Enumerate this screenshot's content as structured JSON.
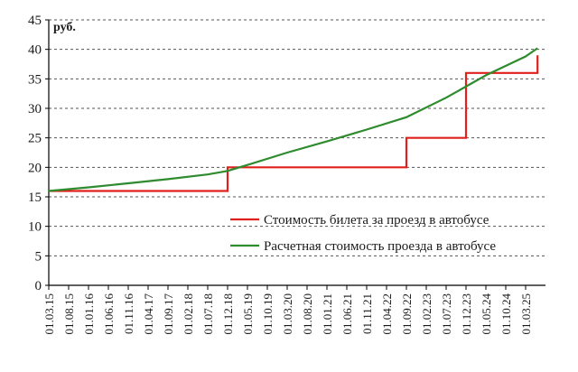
{
  "chart_data": {
    "type": "line",
    "ylabel": "руб.",
    "ylim": [
      0,
      45
    ],
    "y_ticks": [
      "0",
      "5",
      "10",
      "15",
      "20",
      "25",
      "30",
      "35",
      "40",
      "45"
    ],
    "categories": [
      "01.03.15",
      "01.08.15",
      "01.01.16",
      "01.06.16",
      "01.11.16",
      "01.04.17",
      "01.09.17",
      "01.02.18",
      "01.07.18",
      "01.12.18",
      "01.05.19",
      "01.10.19",
      "01.03.20",
      "01.08.20",
      "01.01.21",
      "01.06.21",
      "01.11.21",
      "01.04.22",
      "01.09.22",
      "01.02.23",
      "01.07.23",
      "01.12.23",
      "01.05.24",
      "01.10.24",
      "01.03.25"
    ],
    "grid": "horizontal-dashed",
    "legend_position": "center-right",
    "series": [
      {
        "name": "Стоимость билета за проезд в автобусе",
        "color": "#e0201c",
        "step": true,
        "points": [
          {
            "x": "01.03.15",
            "y": 16
          },
          {
            "x": "01.12.18",
            "y": 16
          },
          {
            "x": "01.12.18",
            "y": 20
          },
          {
            "x": "01.09.22",
            "y": 20
          },
          {
            "x": "01.09.22",
            "y": 25
          },
          {
            "x": "01.12.23",
            "y": 25
          },
          {
            "x": "01.12.23",
            "y": 36
          },
          {
            "x": "01.06.25",
            "y": 36
          },
          {
            "x": "01.06.25",
            "y": 39
          }
        ]
      },
      {
        "name": "Расчетная стоимость проезда в автобусе",
        "color": "#2e8b2e",
        "step": false,
        "points": [
          {
            "x": "01.03.15",
            "y": 16
          },
          {
            "x": "01.01.16",
            "y": 16.6
          },
          {
            "x": "01.11.16",
            "y": 17.3
          },
          {
            "x": "01.09.17",
            "y": 18
          },
          {
            "x": "01.07.18",
            "y": 18.8
          },
          {
            "x": "01.12.18",
            "y": 19.4
          },
          {
            "x": "01.05.19",
            "y": 20.4
          },
          {
            "x": "01.03.20",
            "y": 22.5
          },
          {
            "x": "01.01.21",
            "y": 24.4
          },
          {
            "x": "01.11.21",
            "y": 26.4
          },
          {
            "x": "01.09.22",
            "y": 28.5
          },
          {
            "x": "01.07.23",
            "y": 31.8
          },
          {
            "x": "01.05.24",
            "y": 35.6
          },
          {
            "x": "01.03.25",
            "y": 38.8
          },
          {
            "x": "01.06.25",
            "y": 40.2
          }
        ]
      }
    ]
  }
}
